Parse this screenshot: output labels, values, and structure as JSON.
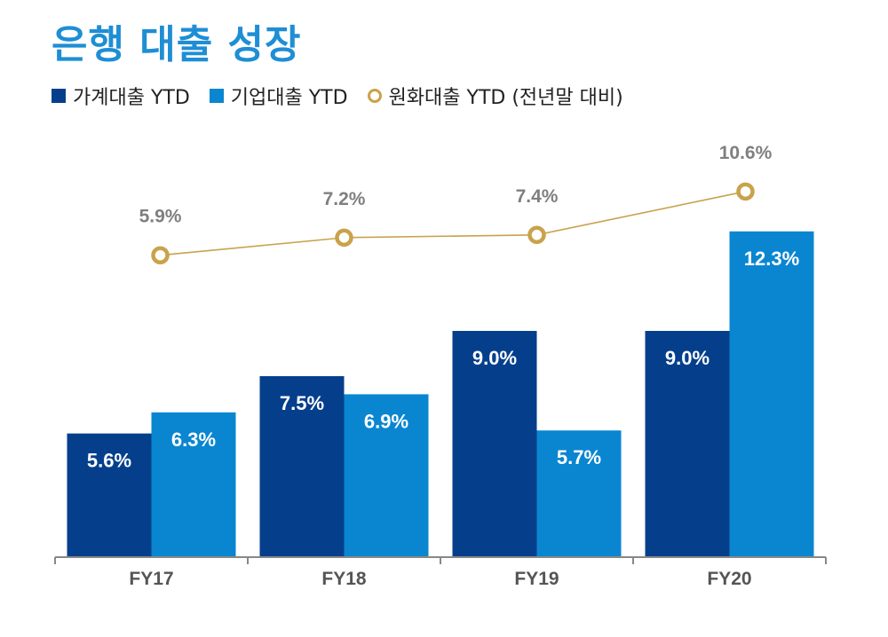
{
  "chart_data": {
    "type": "bar+line",
    "title": "은행 대출 성장",
    "categories": [
      "FY17",
      "FY18",
      "FY19",
      "FY20"
    ],
    "series": [
      {
        "name": "가계대출 YTD",
        "kind": "bar",
        "color": "#053F8C",
        "values": [
          5.6,
          7.5,
          9.0,
          9.0
        ],
        "labels": [
          "5.6%",
          "7.5%",
          "9.0%",
          "9.0%"
        ]
      },
      {
        "name": "기업대출 YTD",
        "kind": "bar",
        "color": "#0A86D1",
        "values": [
          6.3,
          6.9,
          5.7,
          12.3
        ],
        "labels": [
          "6.3%",
          "6.9%",
          "5.7%",
          "12.3%"
        ]
      },
      {
        "name": "원화대출 YTD (전년말 대비)",
        "kind": "line",
        "color": "#C9A24A",
        "values": [
          5.9,
          7.2,
          7.4,
          10.6
        ],
        "labels": [
          "5.9%",
          "7.2%",
          "7.4%",
          "10.6%"
        ]
      }
    ],
    "legend": "top-left",
    "grid": false,
    "ylim_bars": [
      1.5,
      13
    ],
    "ylim_line": [
      0,
      12
    ]
  }
}
